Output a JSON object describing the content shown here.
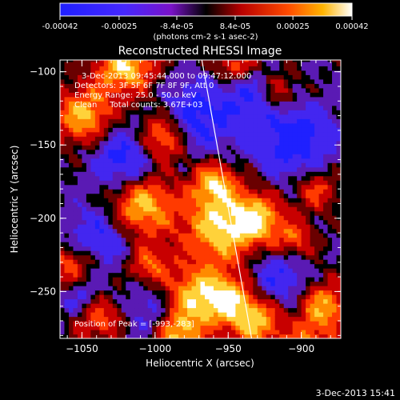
{
  "chart_data": {
    "type": "heatmap",
    "title": "Reconstructed RHESSI Image",
    "xlabel": "Heliocentric X (arcsec)",
    "ylabel": "Heliocentric Y (arcsec)",
    "xlim": [
      -1065,
      -873
    ],
    "ylim": [
      -282,
      -92
    ],
    "xticks": [
      -1050,
      -1000,
      -950,
      -900
    ],
    "yticks": [
      -250,
      -200,
      -150,
      -100
    ],
    "colorbar": {
      "min": -0.00042,
      "max": 0.00042,
      "tick_labels": [
        "-0.00042",
        "-0.00025",
        "-8.4e-05",
        "8.4e-05",
        "0.00025",
        "0.00042"
      ],
      "unit_label": "(photons cm-2 s-1 asec-2)"
    },
    "annotations": {
      "time_range": "3-Dec-2013 09:45:44.000 to 09:47:12.000",
      "detectors": "Detectors: 3F 5F 6F 7F 8F 9F, Att 0",
      "energy_range": "Energy Range: 25.0 - 50.0 keV",
      "clean": "Clean     Total counts: 3.67E+03",
      "peak": "Position of Peak = [-993,-283]"
    },
    "limb_line": {
      "x": [
        -968,
        -934
      ],
      "y": [
        -92,
        -282
      ]
    },
    "grid": false
  },
  "footer": {
    "date": "3-Dec-2013 15:41"
  }
}
